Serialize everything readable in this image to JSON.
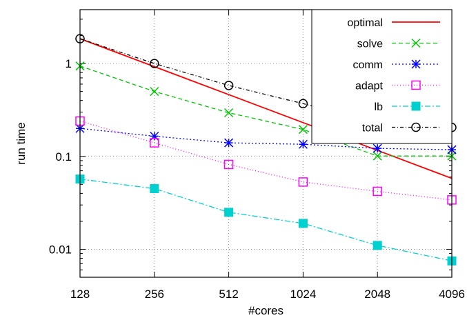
{
  "chart_data": {
    "type": "line",
    "title": "",
    "xlabel": "#cores",
    "ylabel": "run time",
    "x_scale": "log2",
    "y_scale": "log10",
    "xlim": [
      128,
      4096
    ],
    "ylim": [
      0.005,
      3.8
    ],
    "grid": true,
    "legend_position": "top-right",
    "x_ticks": [
      "128",
      "256",
      "512",
      "1024",
      "2048",
      "4096"
    ],
    "y_ticks": [
      "0.01",
      "0.1",
      "1"
    ],
    "y_tick_values": [
      0.01,
      0.1,
      1
    ],
    "x": [
      128,
      256,
      512,
      1024,
      2048,
      4096
    ],
    "series": [
      {
        "name": "optimal",
        "color": "#ff0000",
        "dash": "",
        "marker": "none",
        "values": [
          1.85,
          0.925,
          0.4625,
          0.231,
          0.116,
          0.058
        ]
      },
      {
        "name": "solve",
        "color": "#00c800",
        "dash": "6,4",
        "marker": "x",
        "values": [
          0.94,
          0.5,
          0.295,
          0.195,
          0.101,
          0.101
        ]
      },
      {
        "name": "comm",
        "color": "#0000ff",
        "dash": "2,3",
        "marker": "star",
        "values": [
          0.2,
          0.165,
          0.14,
          0.135,
          0.122,
          0.118
        ]
      },
      {
        "name": "adapt",
        "color": "#ff00ff",
        "dash": "1,3",
        "marker": "open-square",
        "values": [
          0.24,
          0.14,
          0.082,
          0.053,
          0.042,
          0.034
        ]
      },
      {
        "name": "lb",
        "color": "#00d0d0",
        "dash": "8,3,2,3",
        "marker": "filled-square",
        "values": [
          0.057,
          0.045,
          0.025,
          0.019,
          0.011,
          0.0075
        ]
      },
      {
        "name": "total",
        "color": "#000000",
        "dash": "5,3,1,3",
        "marker": "open-circle",
        "values": [
          1.85,
          1.0,
          0.58,
          0.37,
          0.225,
          0.205
        ]
      }
    ]
  }
}
